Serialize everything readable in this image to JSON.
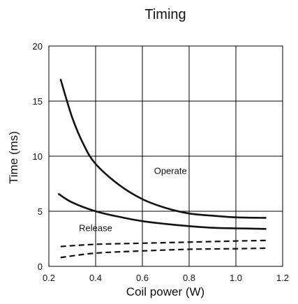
{
  "chart_data": {
    "type": "line",
    "title": "Timing",
    "xlabel": "Coil power (W)",
    "ylabel": "Time (ms)",
    "xlim": [
      0.2,
      1.2
    ],
    "ylim": [
      0,
      20
    ],
    "x_ticks": [
      "0.2",
      "0.4",
      "0.6",
      "0.8",
      "1.0",
      "1.2"
    ],
    "y_ticks": [
      "0",
      "5",
      "10",
      "15",
      "20"
    ],
    "grid": true,
    "annotations": [
      {
        "text": "Operate",
        "x": 0.72,
        "y": 8.4
      },
      {
        "text": "Release",
        "x": 0.4,
        "y": 3.2
      }
    ],
    "series": [
      {
        "style": "solid",
        "points": [
          [
            0.25,
            17.0
          ],
          [
            0.3,
            13.5
          ],
          [
            0.35,
            11.0
          ],
          [
            0.4,
            9.3
          ],
          [
            0.5,
            7.4
          ],
          [
            0.6,
            6.1
          ],
          [
            0.7,
            5.3
          ],
          [
            0.8,
            4.8
          ],
          [
            0.9,
            4.6
          ],
          [
            1.0,
            4.45
          ],
          [
            1.13,
            4.4
          ]
        ]
      },
      {
        "style": "solid",
        "points": [
          [
            0.24,
            6.6
          ],
          [
            0.3,
            5.8
          ],
          [
            0.4,
            5.0
          ],
          [
            0.5,
            4.5
          ],
          [
            0.6,
            4.1
          ],
          [
            0.7,
            3.85
          ],
          [
            0.8,
            3.65
          ],
          [
            0.9,
            3.5
          ],
          [
            1.0,
            3.45
          ],
          [
            1.13,
            3.4
          ]
        ]
      },
      {
        "style": "dashed",
        "points": [
          [
            0.25,
            1.8
          ],
          [
            0.4,
            2.0
          ],
          [
            0.6,
            2.1
          ],
          [
            0.8,
            2.2
          ],
          [
            1.0,
            2.3
          ],
          [
            1.13,
            2.35
          ]
        ]
      },
      {
        "style": "dashed",
        "points": [
          [
            0.25,
            0.8
          ],
          [
            0.4,
            1.2
          ],
          [
            0.6,
            1.4
          ],
          [
            0.8,
            1.55
          ],
          [
            1.0,
            1.6
          ],
          [
            1.13,
            1.65
          ]
        ]
      }
    ]
  }
}
